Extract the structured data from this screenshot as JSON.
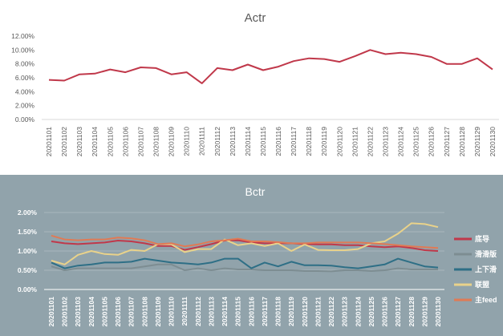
{
  "chart_data": [
    {
      "type": "line",
      "title": "Actr",
      "xlabel": "",
      "ylabel": "",
      "ylim": [
        0,
        12
      ],
      "yticks": [
        "12.00%",
        "10.00%",
        "8.00%",
        "6.00%",
        "4.00%",
        "2.00%",
        "0.00%"
      ],
      "grid": false,
      "categories": [
        "20201101",
        "20201102",
        "20201103",
        "20201104",
        "20201105",
        "20201106",
        "20201107",
        "20201108",
        "20201109",
        "20201110",
        "20201111",
        "20201112",
        "20201113",
        "20201114",
        "20201115",
        "20201116",
        "20201117",
        "20201118",
        "20201119",
        "20201120",
        "20201121",
        "20201122",
        "20201123",
        "20201124",
        "20201125",
        "20201126",
        "20201127",
        "20201128",
        "20201129",
        "20201130"
      ],
      "series": [
        {
          "name": "Actr",
          "color": "#c0384a",
          "values": [
            5.7,
            5.6,
            6.5,
            6.6,
            7.2,
            6.8,
            7.5,
            7.4,
            6.5,
            6.8,
            5.2,
            7.4,
            7.1,
            7.9,
            7.1,
            7.6,
            8.4,
            8.8,
            8.7,
            8.3,
            9.1,
            10.0,
            9.4,
            9.6,
            9.4,
            9.0,
            8.0,
            8.0,
            8.8,
            7.2
          ]
        }
      ]
    },
    {
      "type": "line",
      "title": "Bctr",
      "xlabel": "",
      "ylabel": "",
      "ylim": [
        0,
        2
      ],
      "yticks": [
        "2.00%",
        "1.50%",
        "1.00%",
        "0.50%",
        "0.00%"
      ],
      "grid": true,
      "legend": "right",
      "categories": [
        "20201101",
        "20201102",
        "20201103",
        "20201104",
        "20201105",
        "20201106",
        "20201107",
        "20201108",
        "20201109",
        "20201110",
        "20201111",
        "20201112",
        "20201113",
        "20201114",
        "20201115",
        "20201116",
        "20201117",
        "20201118",
        "20201119",
        "20201120",
        "20201121",
        "20201122",
        "20201123",
        "20201124",
        "20201125",
        "20201126",
        "20201127",
        "20201128",
        "20201129",
        "20201130"
      ],
      "series": [
        {
          "name": "底导",
          "color": "#c0384a",
          "values": [
            1.25,
            1.2,
            1.18,
            1.2,
            1.22,
            1.27,
            1.25,
            1.2,
            1.13,
            1.13,
            1.03,
            1.1,
            1.18,
            1.27,
            1.28,
            1.22,
            1.2,
            1.2,
            1.2,
            1.18,
            1.17,
            1.17,
            1.15,
            1.15,
            1.12,
            1.1,
            1.12,
            1.08,
            1.02,
            1.0
          ]
        },
        {
          "name": "滑滑版",
          "color": "#7d8d92",
          "values": [
            0.6,
            0.5,
            0.55,
            0.55,
            0.55,
            0.55,
            0.55,
            0.6,
            0.65,
            0.65,
            0.5,
            0.55,
            0.5,
            0.55,
            0.52,
            0.52,
            0.5,
            0.5,
            0.5,
            0.48,
            0.48,
            0.47,
            0.5,
            0.5,
            0.48,
            0.5,
            0.55,
            0.52,
            0.52,
            0.52
          ]
        },
        {
          "name": "上下滑",
          "color": "#2e6f86",
          "values": [
            0.7,
            0.55,
            0.62,
            0.65,
            0.7,
            0.7,
            0.72,
            0.8,
            0.75,
            0.7,
            0.68,
            0.65,
            0.7,
            0.8,
            0.8,
            0.55,
            0.7,
            0.6,
            0.72,
            0.63,
            0.63,
            0.62,
            0.58,
            0.55,
            0.6,
            0.65,
            0.8,
            0.7,
            0.6,
            0.57
          ]
        },
        {
          "name": "联盟",
          "color": "#e9d28a",
          "values": [
            0.75,
            0.65,
            0.9,
            1.0,
            0.92,
            0.9,
            1.03,
            1.0,
            1.18,
            1.17,
            0.97,
            1.05,
            1.05,
            1.3,
            1.15,
            1.2,
            1.13,
            1.2,
            1.0,
            1.17,
            1.03,
            1.02,
            1.02,
            1.05,
            1.2,
            1.25,
            1.45,
            1.72,
            1.7,
            1.62
          ]
        },
        {
          "name": "主feed",
          "color": "#e07a55",
          "values": [
            1.4,
            1.3,
            1.28,
            1.3,
            1.3,
            1.35,
            1.33,
            1.28,
            1.18,
            1.2,
            1.12,
            1.17,
            1.25,
            1.28,
            1.32,
            1.25,
            1.25,
            1.23,
            1.2,
            1.2,
            1.22,
            1.22,
            1.22,
            1.22,
            1.2,
            1.18,
            1.15,
            1.12,
            1.1,
            1.08
          ]
        }
      ]
    }
  ]
}
